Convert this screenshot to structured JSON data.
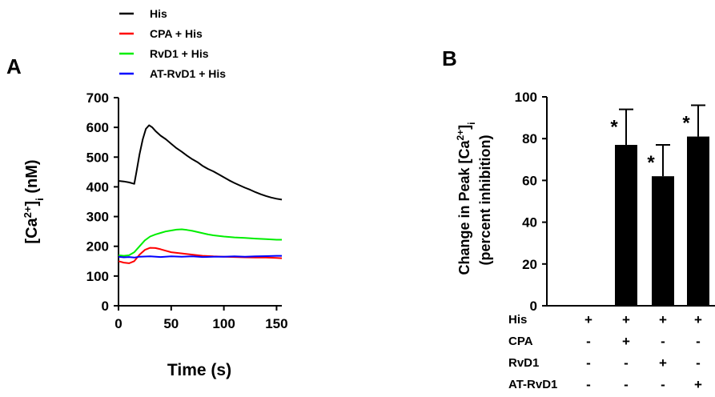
{
  "chart_data": [
    {
      "panel": "A",
      "type": "line",
      "xlabel": "Time (s)",
      "ylabel_main": "[Ca",
      "ylabel_sup": "2+",
      "ylabel_end": "]",
      "ylabel_sub": "i",
      "ylabel_unit": " (nM)",
      "xlim": [
        0,
        155
      ],
      "ylim": [
        0,
        700
      ],
      "xticks": [
        0,
        50,
        100,
        150
      ],
      "yticks": [
        0,
        100,
        200,
        300,
        400,
        500,
        600,
        700
      ],
      "legend_placement": "top",
      "series": [
        {
          "name": "His",
          "color": "#000000",
          "points": [
            [
              0,
              420
            ],
            [
              5,
              418
            ],
            [
              10,
              415
            ],
            [
              15,
              410
            ],
            [
              17,
              450
            ],
            [
              20,
              510
            ],
            [
              23,
              560
            ],
            [
              26,
              595
            ],
            [
              29,
              607
            ],
            [
              32,
              600
            ],
            [
              35,
              588
            ],
            [
              40,
              572
            ],
            [
              45,
              560
            ],
            [
              50,
              545
            ],
            [
              55,
              530
            ],
            [
              60,
              518
            ],
            [
              65,
              505
            ],
            [
              70,
              493
            ],
            [
              75,
              483
            ],
            [
              80,
              470
            ],
            [
              85,
              460
            ],
            [
              90,
              452
            ],
            [
              95,
              442
            ],
            [
              100,
              432
            ],
            [
              105,
              422
            ],
            [
              110,
              413
            ],
            [
              115,
              405
            ],
            [
              120,
              397
            ],
            [
              125,
              390
            ],
            [
              130,
              382
            ],
            [
              135,
              375
            ],
            [
              140,
              369
            ],
            [
              145,
              364
            ],
            [
              150,
              360
            ],
            [
              155,
              357
            ]
          ]
        },
        {
          "name": "CPA + His",
          "color": "#ff0000",
          "points": [
            [
              0,
              150
            ],
            [
              5,
              145
            ],
            [
              10,
              143
            ],
            [
              15,
              150
            ],
            [
              20,
              172
            ],
            [
              25,
              188
            ],
            [
              30,
              195
            ],
            [
              35,
              194
            ],
            [
              40,
              190
            ],
            [
              45,
              185
            ],
            [
              50,
              180
            ],
            [
              55,
              178
            ],
            [
              60,
              176
            ],
            [
              70,
              172
            ],
            [
              80,
              168
            ],
            [
              90,
              166
            ],
            [
              100,
              165
            ],
            [
              110,
              164
            ],
            [
              120,
              163
            ],
            [
              130,
              162
            ],
            [
              140,
              162
            ],
            [
              150,
              161
            ],
            [
              155,
              160
            ]
          ]
        },
        {
          "name": "RvD1 + His",
          "color": "#00ee00",
          "points": [
            [
              0,
              170
            ],
            [
              5,
              168
            ],
            [
              10,
              170
            ],
            [
              15,
              180
            ],
            [
              20,
              200
            ],
            [
              25,
              220
            ],
            [
              30,
              233
            ],
            [
              35,
              240
            ],
            [
              40,
              245
            ],
            [
              45,
              250
            ],
            [
              50,
              253
            ],
            [
              55,
              256
            ],
            [
              60,
              257
            ],
            [
              65,
              255
            ],
            [
              70,
              252
            ],
            [
              75,
              248
            ],
            [
              80,
              244
            ],
            [
              85,
              240
            ],
            [
              90,
              237
            ],
            [
              95,
              235
            ],
            [
              100,
              233
            ],
            [
              110,
              230
            ],
            [
              120,
              228
            ],
            [
              130,
              226
            ],
            [
              140,
              224
            ],
            [
              150,
              222
            ],
            [
              155,
              222
            ]
          ]
        },
        {
          "name": "AT-RvD1 + His",
          "color": "#0000ff",
          "points": [
            [
              0,
              165
            ],
            [
              5,
              163
            ],
            [
              10,
              164
            ],
            [
              15,
              162
            ],
            [
              20,
              165
            ],
            [
              30,
              166
            ],
            [
              40,
              164
            ],
            [
              50,
              166
            ],
            [
              60,
              165
            ],
            [
              70,
              166
            ],
            [
              80,
              164
            ],
            [
              90,
              165
            ],
            [
              100,
              165
            ],
            [
              110,
              166
            ],
            [
              120,
              165
            ],
            [
              130,
              166
            ],
            [
              140,
              167
            ],
            [
              150,
              168
            ],
            [
              155,
              168
            ]
          ]
        }
      ]
    },
    {
      "panel": "B",
      "type": "bar",
      "ylabel_line1_main": "Change in Peak [Ca",
      "ylabel_line1_sup": "2+",
      "ylabel_line1_end": "]",
      "ylabel_line1_sub": "i",
      "ylabel_line2": "(percent inhibition)",
      "ylim": [
        0,
        100
      ],
      "yticks": [
        0,
        20,
        40,
        60,
        80,
        100
      ],
      "bar_color": "#000000",
      "values": [
        0,
        77,
        62,
        81
      ],
      "errors": [
        0,
        17,
        15,
        15
      ],
      "significance": [
        "",
        "*",
        "*",
        "*"
      ],
      "treatment_rows": [
        {
          "label": "His",
          "marks": [
            "+",
            "+",
            "+",
            "+"
          ]
        },
        {
          "label": "CPA",
          "marks": [
            "-",
            "+",
            "-",
            "-"
          ]
        },
        {
          "label": "RvD1",
          "marks": [
            "-",
            "-",
            "+",
            "-"
          ]
        },
        {
          "label": "AT-RvD1",
          "marks": [
            "-",
            "-",
            "-",
            "+"
          ]
        }
      ]
    }
  ]
}
